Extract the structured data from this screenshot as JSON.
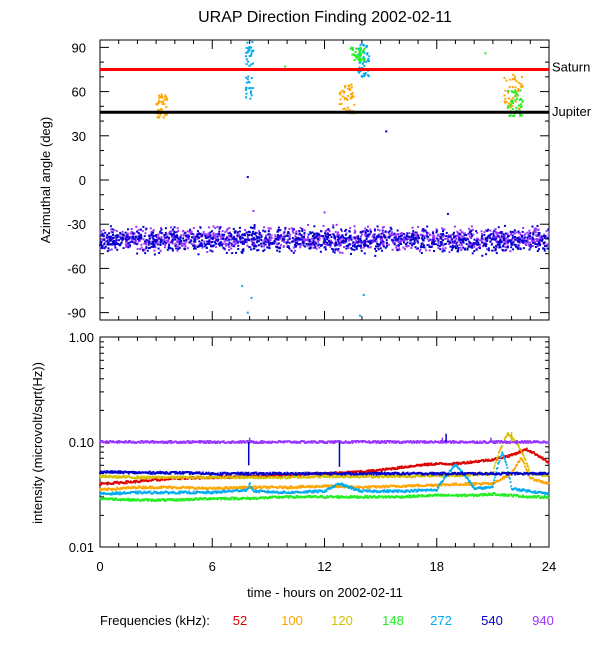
{
  "chart_data": [
    {
      "type": "scatter",
      "title": "URAP Direction Finding  2002-02-11",
      "xlabel": "",
      "ylabel": "Azimuthal angle (deg)",
      "xlim": [
        0,
        24
      ],
      "ylim": [
        -95,
        95
      ],
      "yticks": [
        -90,
        -60,
        -30,
        0,
        30,
        60,
        90
      ],
      "reference_lines": [
        {
          "name": "Saturn",
          "value": 75,
          "color": "#ff0000"
        },
        {
          "name": "Jupiter",
          "value": 46,
          "color": "#000000"
        }
      ],
      "series": [
        {
          "name": "940",
          "color": "#9933ff",
          "description": "band near -40 deg all day",
          "center": -40,
          "spread": 11
        },
        {
          "name": "540",
          "color": "#0000cc",
          "description": "band near -40 deg all day",
          "center": -41,
          "spread": 12
        },
        {
          "name": "100",
          "color": "#ffa500",
          "clusters": [
            [
              3.0,
              3.6,
              42,
              58
            ],
            [
              12.8,
              13.6,
              45,
              65
            ],
            [
              21.6,
              22.6,
              48,
              72
            ]
          ]
        },
        {
          "name": "272",
          "color": "#00aaee",
          "clusters": [
            [
              7.8,
              8.2,
              55,
              95
            ],
            [
              13.8,
              14.4,
              70,
              92
            ]
          ]
        },
        {
          "name": "148",
          "color": "#22ee22",
          "clusters": [
            [
              13.4,
              14.2,
              80,
              90
            ],
            [
              21.8,
              22.6,
              42,
              62
            ]
          ]
        }
      ]
    },
    {
      "type": "line",
      "xlabel": "time - hours on 2002-02-11",
      "ylabel": "intensity (microvolt/sqrt(Hz))",
      "xlim": [
        0,
        24
      ],
      "ylim": [
        0.01,
        1.0
      ],
      "yscale": "log",
      "xticks": [
        "0",
        "6",
        "12",
        "18",
        "24"
      ],
      "yticks": [
        "0.01",
        "0.10",
        "1.00"
      ],
      "series": [
        {
          "name": "52",
          "color": "#dd0000",
          "x": [
            0,
            2,
            4,
            6,
            8,
            10,
            12,
            14,
            15,
            16,
            17,
            18,
            19,
            20,
            21,
            22,
            22.8,
            23.4,
            24
          ],
          "y": [
            0.04,
            0.042,
            0.045,
            0.046,
            0.047,
            0.048,
            0.05,
            0.052,
            0.054,
            0.057,
            0.06,
            0.062,
            0.062,
            0.065,
            0.068,
            0.075,
            0.085,
            0.075,
            0.063
          ]
        },
        {
          "name": "100",
          "color": "#ffa500",
          "x": [
            0,
            2,
            4,
            6,
            8,
            10,
            12,
            14,
            16,
            18,
            20,
            21,
            22,
            22.5,
            23,
            24
          ],
          "y": [
            0.035,
            0.037,
            0.037,
            0.036,
            0.037,
            0.037,
            0.038,
            0.037,
            0.038,
            0.039,
            0.04,
            0.04,
            0.05,
            0.07,
            0.045,
            0.04
          ]
        },
        {
          "name": "120",
          "color": "#d4c000",
          "x": [
            0,
            2,
            4,
            6,
            8,
            10,
            12,
            14,
            16,
            18,
            19,
            20,
            21,
            21.8,
            22.4,
            23,
            24
          ],
          "y": [
            0.047,
            0.046,
            0.046,
            0.046,
            0.046,
            0.046,
            0.047,
            0.047,
            0.047,
            0.048,
            0.048,
            0.049,
            0.05,
            0.12,
            0.09,
            0.05,
            0.048
          ]
        },
        {
          "name": "148",
          "color": "#22ee22",
          "x": [
            0,
            2,
            4,
            6,
            8,
            10,
            12,
            14,
            16,
            18,
            20,
            21,
            22,
            23,
            24
          ],
          "y": [
            0.029,
            0.028,
            0.028,
            0.029,
            0.029,
            0.03,
            0.03,
            0.03,
            0.03,
            0.031,
            0.031,
            0.032,
            0.031,
            0.03,
            0.03
          ]
        },
        {
          "name": "272",
          "color": "#00aaee",
          "x": [
            0,
            2,
            4,
            6,
            7.9,
            8,
            8.2,
            10,
            12,
            12.8,
            13.5,
            14,
            16,
            18,
            19,
            20,
            21,
            21.5,
            22,
            24
          ],
          "y": [
            0.032,
            0.033,
            0.033,
            0.033,
            0.035,
            0.04,
            0.034,
            0.033,
            0.034,
            0.04,
            0.036,
            0.034,
            0.034,
            0.035,
            0.06,
            0.036,
            0.037,
            0.08,
            0.036,
            0.032
          ]
        },
        {
          "name": "540",
          "color": "#0000cc",
          "x": [
            0,
            2,
            4,
            6,
            8,
            10,
            12,
            14,
            16,
            18,
            20,
            22,
            24
          ],
          "y": [
            0.052,
            0.051,
            0.051,
            0.05,
            0.05,
            0.05,
            0.05,
            0.05,
            0.05,
            0.05,
            0.05,
            0.05,
            0.05
          ]
        },
        {
          "name": "940",
          "color": "#9933ff",
          "x": [
            0,
            2,
            4,
            6,
            8,
            10,
            12,
            14,
            16,
            18,
            20,
            22,
            24
          ],
          "y": [
            0.1,
            0.1,
            0.1,
            0.1,
            0.1,
            0.1,
            0.1,
            0.1,
            0.1,
            0.1,
            0.1,
            0.1,
            0.1
          ]
        }
      ]
    }
  ],
  "legend": {
    "label": "Frequencies (kHz):",
    "items": [
      {
        "text": "52",
        "color": "#dd0000"
      },
      {
        "text": "100",
        "color": "#ffa500"
      },
      {
        "text": "120",
        "color": "#d4c000"
      },
      {
        "text": "148",
        "color": "#22ee22"
      },
      {
        "text": "272",
        "color": "#00aaee"
      },
      {
        "text": "540",
        "color": "#0000cc"
      },
      {
        "text": "940",
        "color": "#9933ff"
      }
    ]
  }
}
